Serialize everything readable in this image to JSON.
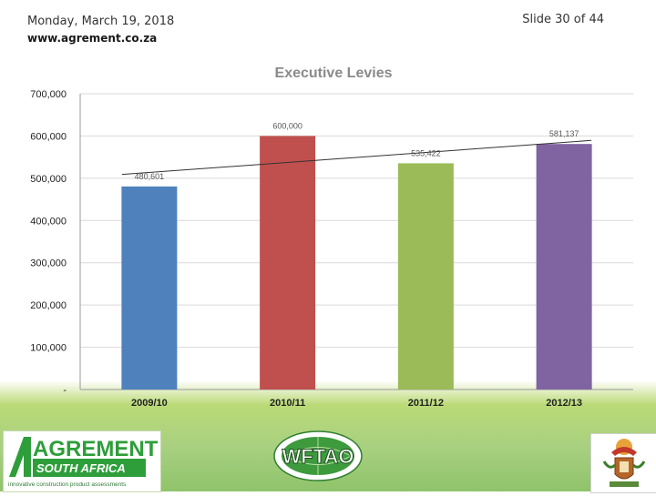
{
  "header": {
    "date": "Monday, March 19, 2018",
    "url": "www.agrement.co.za",
    "slide": "Slide 30 of 44"
  },
  "chart_data": {
    "type": "bar",
    "title": "Executive Levies",
    "categories": [
      "2009/10",
      "2010/11",
      "2011/12",
      "2012/13"
    ],
    "values": [
      480601,
      600000,
      535422,
      581137
    ],
    "value_labels": [
      "480,601",
      "600,000",
      "535,422",
      "581,137"
    ],
    "bar_colors": [
      "#4f81bd",
      "#c0504d",
      "#9bbb59",
      "#8064a2"
    ],
    "ylim": [
      0,
      700000
    ],
    "yticks": [
      0,
      100000,
      200000,
      300000,
      400000,
      500000,
      600000,
      700000
    ],
    "ytick_labels": [
      "-",
      "100,000",
      "200,000",
      "300,000",
      "400,000",
      "500,000",
      "600,000",
      "700,000"
    ],
    "trendline": true,
    "grid": true,
    "xlabel": "",
    "ylabel": ""
  },
  "logos": {
    "left_brand": "AGREMENT",
    "left_sub": "SOUTH AFRICA",
    "left_tagline": "innovative construction product assessments",
    "center_brand": "WFTAO"
  }
}
